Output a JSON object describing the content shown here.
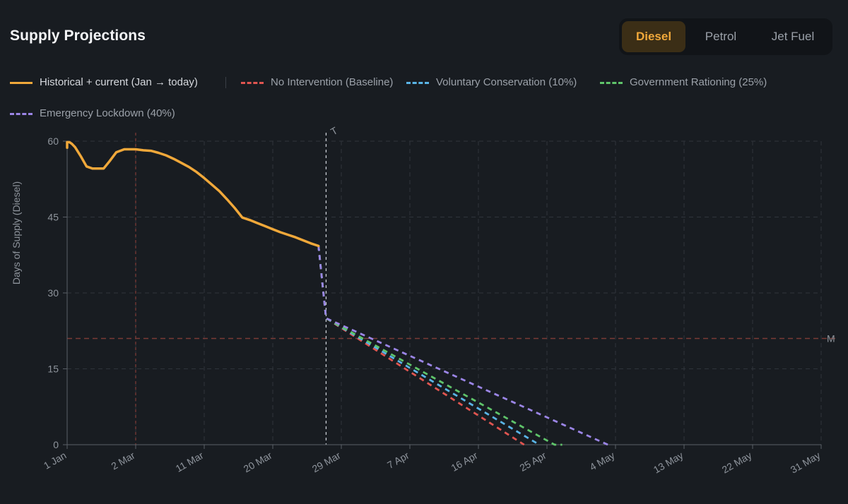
{
  "header": {
    "title": "Supply Projections"
  },
  "fuel_tabs": [
    {
      "label": "Diesel",
      "active": true
    },
    {
      "label": "Petrol",
      "active": false
    },
    {
      "label": "Jet Fuel",
      "active": false
    }
  ],
  "colors": {
    "background": "#181c21",
    "grid": "#2f343b",
    "axis": "#5a5f66",
    "accent": "#f0a83a",
    "threshold": "#7a3a36",
    "today_marker": "#c8ccd2"
  },
  "legend": {
    "current": {
      "label": "Historical + current (Jan → today)",
      "color": "#f0a83a"
    },
    "scenarios": [
      {
        "label": "No Intervention (Baseline)",
        "color": "#e05550"
      },
      {
        "label": "Voluntary Conservation (10%)",
        "color": "#5ab4e6"
      },
      {
        "label": "Government Rationing (25%)",
        "color": "#5fc46a"
      },
      {
        "label": "Emergency Lockdown (40%)",
        "color": "#9b85e6"
      }
    ]
  },
  "threshold_label_fragment": "M",
  "today_label_fragment": "T",
  "chart_data": {
    "type": "line",
    "title": "",
    "xlabel": "",
    "ylabel": "Days of Supply (Diesel)",
    "x_ticks": [
      "1 Jan",
      "2 Mar",
      "11 Mar",
      "20 Mar",
      "29 Mar",
      "7 Apr",
      "16 Apr",
      "25 Apr",
      "4 May",
      "13 May",
      "22 May",
      "31 May"
    ],
    "y_ticks": [
      0,
      15,
      30,
      45,
      60
    ],
    "ylim": [
      0,
      60
    ],
    "grid": true,
    "legend_position": "top-left",
    "reference_lines": [
      {
        "axis": "y",
        "value": 21,
        "style": "dashed",
        "color": "#7a3a36"
      },
      {
        "axis": "x",
        "value": "2 Mar",
        "style": "dashed",
        "color": "#7a3a36"
      },
      {
        "axis": "x",
        "value": "27 Mar",
        "style": "dashed",
        "color": "#c8ccd2"
      }
    ],
    "series": [
      {
        "name": "Historical + current (Jan → today)",
        "style": "solid",
        "color": "#f0a83a",
        "points": [
          [
            "1 Jan",
            58.7
          ],
          [
            "Jan",
            59.8
          ],
          [
            "Jan",
            59.8
          ],
          [
            "Jan",
            59.5
          ],
          [
            "Jan",
            58.8
          ],
          [
            "Jan",
            57.0
          ],
          [
            "Jan",
            55.0
          ],
          [
            "Jan",
            54.6
          ],
          [
            "Feb",
            54.6
          ],
          [
            "Feb",
            56.0
          ],
          [
            "Feb",
            57.8
          ],
          [
            "Feb",
            58.4
          ],
          [
            "2 Mar",
            58.4
          ],
          [
            "3 Mar",
            58.2
          ],
          [
            "4 Mar",
            58.1
          ],
          [
            "5 Mar",
            57.7
          ],
          [
            "6 Mar",
            57.2
          ],
          [
            "7 Mar",
            56.5
          ],
          [
            "8 Mar",
            55.7
          ],
          [
            "9 Mar",
            54.9
          ],
          [
            "10 Mar",
            53.9
          ],
          [
            "11 Mar",
            52.7
          ],
          [
            "12 Mar",
            51.4
          ],
          [
            "13 Mar",
            50.1
          ],
          [
            "14 Mar",
            48.5
          ],
          [
            "15 Mar",
            46.8
          ],
          [
            "16 Mar",
            44.9
          ],
          [
            "17 Mar",
            44.4
          ],
          [
            "18 Mar",
            43.8
          ],
          [
            "19 Mar",
            43.2
          ],
          [
            "20 Mar",
            42.6
          ],
          [
            "21 Mar",
            42.0
          ],
          [
            "22 Mar",
            41.5
          ],
          [
            "23 Mar",
            41.0
          ],
          [
            "24 Mar",
            40.4
          ],
          [
            "25 Mar",
            39.8
          ],
          [
            "26 Mar",
            39.3
          ]
        ]
      },
      {
        "name": "No Intervention (Baseline)",
        "style": "dashed",
        "color": "#e05550",
        "points": [
          [
            "26 Mar",
            39.3
          ],
          [
            "27 Mar",
            25.0
          ],
          [
            "22 Apr",
            0.0
          ]
        ]
      },
      {
        "name": "Voluntary Conservation (10%)",
        "style": "dashed",
        "color": "#5ab4e6",
        "points": [
          [
            "26 Mar",
            39.3
          ],
          [
            "27 Mar",
            25.0
          ],
          [
            "24 Apr",
            0.0
          ]
        ]
      },
      {
        "name": "Government Rationing (25%)",
        "style": "dashed",
        "color": "#5fc46a",
        "points": [
          [
            "26 Mar",
            39.3
          ],
          [
            "27 Mar",
            25.0
          ],
          [
            "26 Apr",
            0.0
          ],
          [
            "27 Apr",
            0.0
          ]
        ]
      },
      {
        "name": "Emergency Lockdown (40%)",
        "style": "dashed",
        "color": "#9b85e6",
        "points": [
          [
            "26 Mar",
            39.3
          ],
          [
            "27 Mar",
            25.0
          ],
          [
            "3 May",
            0.0
          ]
        ]
      }
    ]
  }
}
